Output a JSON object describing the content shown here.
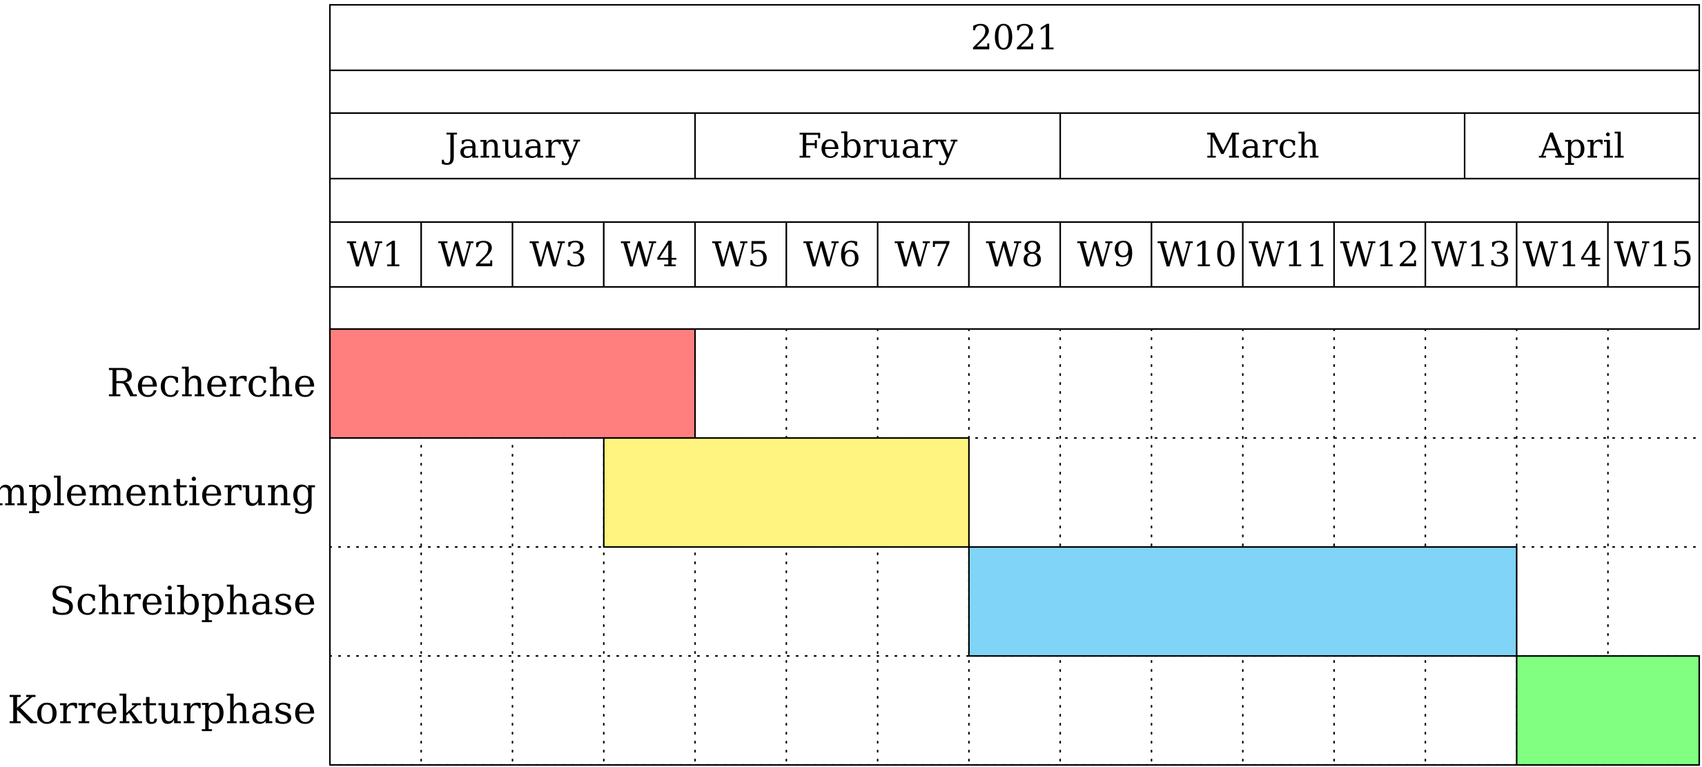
{
  "chart_data": {
    "type": "gantt",
    "year": "2021",
    "months": [
      {
        "label": "January",
        "start_week": 1,
        "end_week": 4
      },
      {
        "label": "February",
        "start_week": 5,
        "end_week": 8
      },
      {
        "label": "March",
        "start_week": 9,
        "end_week": 12.43
      },
      {
        "label": "April",
        "start_week": 12.43,
        "end_week": 15
      }
    ],
    "weeks": [
      "W1",
      "W2",
      "W3",
      "W4",
      "W5",
      "W6",
      "W7",
      "W8",
      "W9",
      "W10",
      "W11",
      "W12",
      "W13",
      "W14",
      "W15"
    ],
    "tasks": [
      {
        "name": "Recherche",
        "start_week": 1,
        "end_week": 4,
        "color": "#ff7f7f"
      },
      {
        "name": "Implementierung",
        "start_week": 4,
        "end_week": 7,
        "color": "#fff47f"
      },
      {
        "name": "Schreibphase",
        "start_week": 8,
        "end_week": 13,
        "color": "#80d4f7"
      },
      {
        "name": "Korrekturphase",
        "start_week": 14,
        "end_week": 15,
        "color": "#80ff80"
      }
    ],
    "grid": "dotted"
  }
}
